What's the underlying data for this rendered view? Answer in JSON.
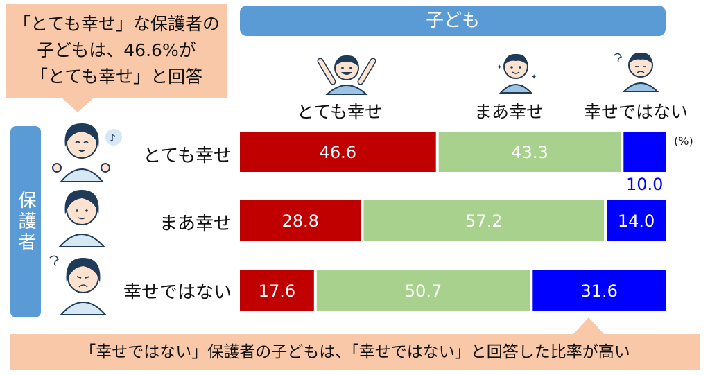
{
  "callouts": {
    "top_lines": [
      "「とても幸せ」な保護者の",
      "子どもは、46.6%が",
      "「とても幸せ」と回答"
    ],
    "bottom": "「幸せではない」保護者の子どもは、「幸せではない」と回答した比率が高い"
  },
  "headers": {
    "child": "子ども",
    "parent": "保護者"
  },
  "unit": "(%)",
  "colors": {
    "very_happy": "#c00000",
    "somewhat_happy": "#a9d18e",
    "not_happy": "#0000ff",
    "header": "#5b9bd5",
    "callout": "#f8c8a8"
  },
  "chart_data": {
    "type": "bar",
    "orientation": "horizontal-stacked-100",
    "title": "",
    "xlabel": "",
    "ylabel": "",
    "categories": [
      "とても幸せ",
      "まあ幸せ",
      "幸せではない"
    ],
    "series": [
      {
        "name": "とても幸せ",
        "values": [
          46.6,
          28.8,
          17.6
        ]
      },
      {
        "name": "まあ幸せ",
        "values": [
          43.3,
          57.2,
          50.7
        ]
      },
      {
        "name": "幸せではない",
        "values": [
          10.0,
          14.0,
          31.6
        ]
      }
    ],
    "data_labels": [
      [
        "46.6",
        "43.3",
        "10.0"
      ],
      [
        "28.8",
        "57.2",
        "14.0"
      ],
      [
        "17.6",
        "50.7",
        "31.6"
      ]
    ],
    "xlim": [
      0,
      100
    ],
    "grid": false,
    "legend": "top"
  }
}
